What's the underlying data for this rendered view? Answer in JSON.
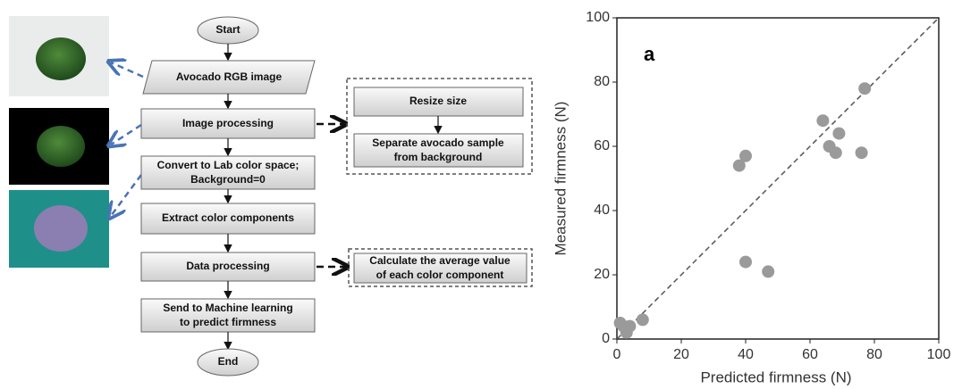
{
  "flowchart": {
    "start": "Start",
    "steps": [
      "Avocado RGB image",
      "Image processing",
      [
        "Convert to Lab color space;",
        "Background=0"
      ],
      "Extract color components",
      "Data processing",
      [
        "Send to Machine learning",
        "to predict firmness"
      ]
    ],
    "end": "End",
    "details": [
      [
        "Resize size"
      ],
      [
        "Separate avocado sample",
        "from background"
      ],
      [
        "Calculate the average value",
        "of each color component"
      ]
    ]
  },
  "chart_data": {
    "type": "scatter",
    "annotation": "a",
    "x_label": "Predicted firmness (N)",
    "y_label": "Measured firmness (N)",
    "series": [
      {
        "color": "#9a9a9a",
        "x": [
          1,
          2,
          3,
          4,
          8,
          38,
          40,
          40,
          47,
          64,
          66,
          68,
          69,
          76,
          77
        ],
        "values": [
          5,
          4,
          2,
          4,
          6,
          54,
          57,
          24,
          21,
          68,
          60,
          58,
          64,
          58,
          78
        ]
      }
    ],
    "xlim": [
      0,
      100
    ],
    "ylim": [
      0,
      100
    ],
    "xticks": [
      0,
      20,
      40,
      60,
      80,
      100
    ],
    "yticks": [
      0,
      20,
      40,
      60,
      80,
      100
    ]
  }
}
